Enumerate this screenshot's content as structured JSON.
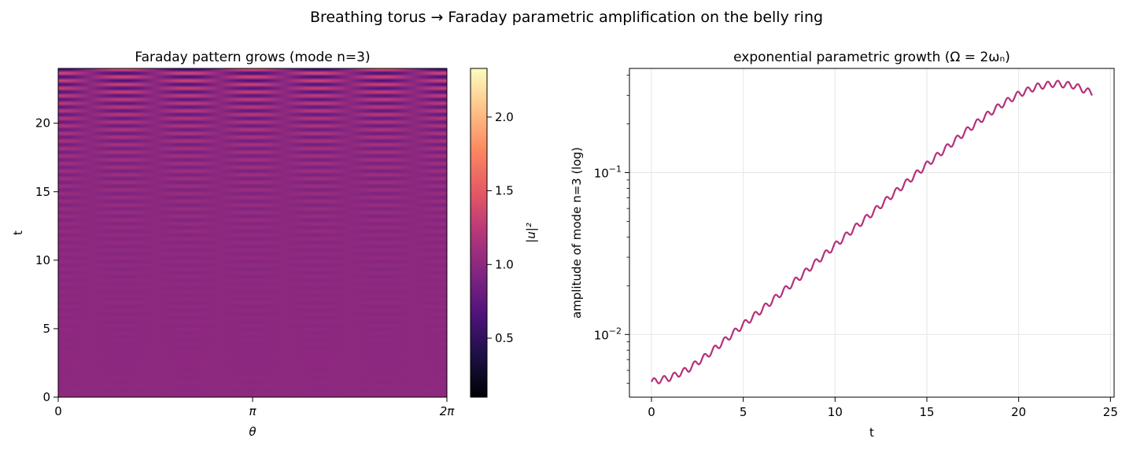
{
  "figure": {
    "suptitle": "Breathing torus → Faraday parametric amplification on the belly ring"
  },
  "chart_data": [
    {
      "type": "heatmap",
      "title": "Faraday pattern grows (mode n=3)",
      "xlabel": "θ",
      "ylabel": "t",
      "xlim": [
        0,
        6.2832
      ],
      "ylim": [
        0,
        24
      ],
      "x_ticks": [
        {
          "value": 0,
          "label": "0"
        },
        {
          "value": 3.1416,
          "label": "π"
        },
        {
          "value": 6.2832,
          "label": "2π"
        }
      ],
      "y_ticks": [
        {
          "value": 0,
          "label": "0"
        },
        {
          "value": 5,
          "label": "5"
        },
        {
          "value": 10,
          "label": "10"
        },
        {
          "value": 15,
          "label": "15"
        },
        {
          "value": 20,
          "label": "20"
        }
      ],
      "colormap": "magma",
      "colorbar": {
        "label": "|u|²",
        "range": [
          0.1,
          2.33
        ],
        "ticks": [
          {
            "value": 0.5,
            "label": "0.5"
          },
          {
            "value": 1.0,
            "label": "1.0"
          },
          {
            "value": 1.5,
            "label": "1.5"
          },
          {
            "value": 2.0,
            "label": "2.0"
          }
        ]
      },
      "model": {
        "mode_n": 3,
        "base_level": 1.0,
        "amplitude_t0": 0.005,
        "growth_per_t": 0.1755,
        "stripe_period_t": 0.55
      },
      "grid": false
    },
    {
      "type": "line",
      "title": "exponential parametric growth (Ω = 2ωₙ)",
      "xlabel": "t",
      "ylabel": "amplitude of mode n=3 (log)",
      "xlim": [
        -1.2,
        25.2
      ],
      "ylim": [
        0.0041,
        0.44
      ],
      "yscale": "log",
      "grid": true,
      "x_ticks": [
        {
          "value": 0,
          "label": "0"
        },
        {
          "value": 5,
          "label": "5"
        },
        {
          "value": 10,
          "label": "10"
        },
        {
          "value": 15,
          "label": "15"
        },
        {
          "value": 20,
          "label": "20"
        },
        {
          "value": 25,
          "label": "25"
        }
      ],
      "y_ticks_major": [
        {
          "value": 0.01,
          "base": "10",
          "exp": "−2"
        },
        {
          "value": 0.1,
          "base": "10",
          "exp": "−1"
        }
      ],
      "line_color": "#b5307a",
      "wiggle": {
        "period_t": 0.55,
        "relative_amplitude": 0.045
      },
      "series": [
        {
          "x": [
            0,
            1,
            2,
            3,
            4,
            5,
            6,
            7,
            8,
            9,
            10,
            11,
            12,
            13,
            14,
            15,
            16,
            17,
            18,
            19,
            20,
            21,
            22,
            23,
            24
          ],
          "values": [
            0.0051,
            0.0054,
            0.0061,
            0.0074,
            0.0092,
            0.0115,
            0.0142,
            0.0178,
            0.0222,
            0.0282,
            0.0355,
            0.0448,
            0.056,
            0.071,
            0.089,
            0.112,
            0.14,
            0.175,
            0.215,
            0.26,
            0.305,
            0.34,
            0.355,
            0.345,
            0.31
          ]
        }
      ]
    }
  ]
}
